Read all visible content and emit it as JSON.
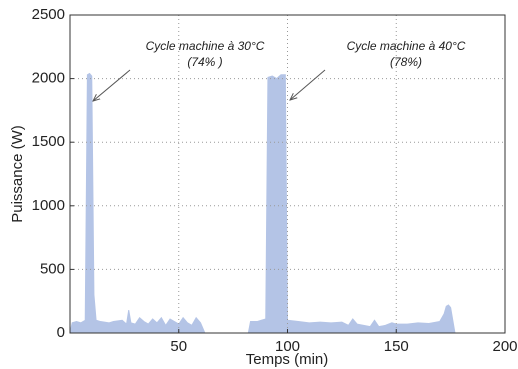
{
  "chart_data": {
    "type": "area",
    "xlabel": "Temps (min)",
    "ylabel": "Puissance (W)",
    "x": [
      0,
      1,
      3,
      5,
      7,
      8,
      9,
      10,
      11,
      12,
      14,
      18,
      20,
      24,
      26,
      27,
      28,
      30,
      32,
      34,
      36,
      38,
      40,
      42,
      44,
      46,
      48,
      50,
      52,
      54,
      56,
      58,
      60,
      62,
      82,
      83,
      86,
      88,
      90,
      91,
      93,
      95,
      97,
      99,
      100,
      105,
      110,
      115,
      120,
      125,
      128,
      130,
      132,
      135,
      138,
      140,
      142,
      145,
      148,
      150,
      155,
      160,
      165,
      170,
      172,
      173,
      174,
      175,
      176,
      177
    ],
    "values": [
      0,
      80,
      90,
      80,
      100,
      2030,
      2040,
      2020,
      300,
      100,
      90,
      80,
      90,
      100,
      70,
      180,
      80,
      70,
      120,
      90,
      70,
      110,
      80,
      120,
      60,
      110,
      90,
      70,
      120,
      80,
      60,
      120,
      80,
      0,
      0,
      90,
      90,
      100,
      110,
      2010,
      2020,
      2000,
      2030,
      2030,
      100,
      90,
      80,
      85,
      80,
      85,
      60,
      110,
      70,
      60,
      50,
      100,
      50,
      60,
      80,
      70,
      70,
      80,
      75,
      90,
      150,
      210,
      220,
      200,
      100,
      0
    ],
    "color": "#b4c4e6",
    "xlim": [
      0,
      200
    ],
    "xticks": [
      50,
      100,
      150,
      200
    ],
    "ylim": [
      0,
      2500
    ],
    "yticks": [
      0,
      500,
      1000,
      1500,
      2000,
      2500
    ],
    "grid": true,
    "annotations": [
      "Cycle machine à 30°C",
      "(74% )",
      "Cycle machine à 40°C",
      "(78%)"
    ]
  }
}
